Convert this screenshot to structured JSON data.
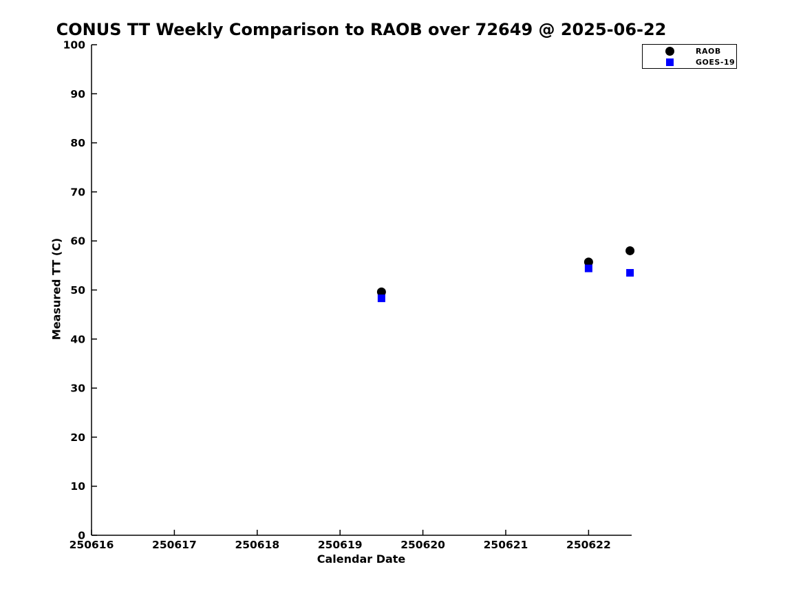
{
  "figure": {
    "title": "CONUS TT Weekly Comparison to RAOB over 72649 @ 2025-06-22"
  },
  "chart_data": {
    "type": "scatter",
    "title": "CONUS TT Weekly Comparison to RAOB over 72649 @ 2025-06-22",
    "xlabel": "Calendar Date",
    "ylabel": "Measured TT (C)",
    "xlim": [
      250616,
      250622.52
    ],
    "ylim": [
      0,
      100
    ],
    "x_ticks": [
      250616,
      250617,
      250618,
      250619,
      250620,
      250621,
      250622
    ],
    "y_ticks": [
      0,
      10,
      20,
      30,
      40,
      50,
      60,
      70,
      80,
      90,
      100
    ],
    "grid": false,
    "legend_position": "upper-right",
    "background_color": "#ffffff",
    "axis_color": "#000000",
    "series": [
      {
        "name": "RAOB",
        "marker": "circle",
        "color": "#000000",
        "x": [
          250619.5,
          250622.0,
          250622.5
        ],
        "y": [
          49.6,
          55.7,
          58.0
        ]
      },
      {
        "name": "GOES-19",
        "marker": "square",
        "color": "#0000ff",
        "x": [
          250619.5,
          250622.0,
          250622.5
        ],
        "y": [
          48.3,
          54.4,
          53.5
        ]
      }
    ]
  }
}
